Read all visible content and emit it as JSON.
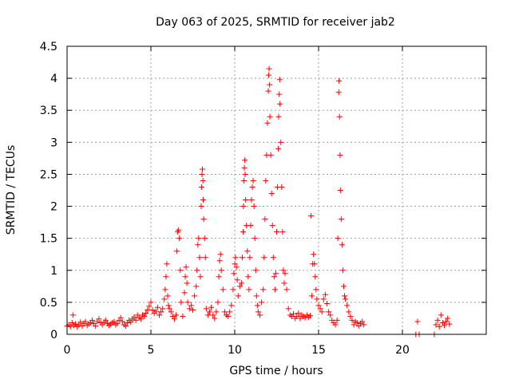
{
  "chart_data": {
    "type": "scatter",
    "title": "Day 063 of 2025, SRMTID for receiver jab2",
    "xlabel": "GPS time / hours",
    "ylabel": "SRMTID / TECUs",
    "xlim": [
      0,
      25
    ],
    "ylim": [
      0,
      4.5
    ],
    "xticks": [
      0,
      5,
      10,
      15,
      20
    ],
    "xtick_labels": [
      "0",
      "5",
      "10",
      "15",
      "20"
    ],
    "yticks": [
      0,
      0.5,
      1,
      1.5,
      2,
      2.5,
      3,
      3.5,
      4,
      4.5
    ],
    "ytick_labels": [
      "0",
      "0.5",
      "1",
      "1.5",
      "2",
      "2.5",
      "3",
      "3.5",
      "4",
      "4.5"
    ],
    "grid": true,
    "marker": "+",
    "color": "#ff0000",
    "series": [
      {
        "name": "jab2",
        "points": [
          [
            0.0,
            0.13
          ],
          [
            0.1,
            0.15
          ],
          [
            0.2,
            0.12
          ],
          [
            0.3,
            0.18
          ],
          [
            0.35,
            0.3
          ],
          [
            0.4,
            0.14
          ],
          [
            0.5,
            0.16
          ],
          [
            0.6,
            0.12
          ],
          [
            0.7,
            0.15
          ],
          [
            0.8,
            0.19
          ],
          [
            0.9,
            0.13
          ],
          [
            1.0,
            0.17
          ],
          [
            1.1,
            0.2
          ],
          [
            1.2,
            0.14
          ],
          [
            1.3,
            0.16
          ],
          [
            1.4,
            0.18
          ],
          [
            1.5,
            0.22
          ],
          [
            1.6,
            0.17
          ],
          [
            1.7,
            0.13
          ],
          [
            1.8,
            0.2
          ],
          [
            1.9,
            0.24
          ],
          [
            2.0,
            0.18
          ],
          [
            2.1,
            0.15
          ],
          [
            2.2,
            0.19
          ],
          [
            2.3,
            0.22
          ],
          [
            2.4,
            0.17
          ],
          [
            2.5,
            0.14
          ],
          [
            2.6,
            0.16
          ],
          [
            2.7,
            0.18
          ],
          [
            2.8,
            0.2
          ],
          [
            2.9,
            0.15
          ],
          [
            3.0,
            0.17
          ],
          [
            3.1,
            0.22
          ],
          [
            3.2,
            0.26
          ],
          [
            3.3,
            0.2
          ],
          [
            3.4,
            0.15
          ],
          [
            3.5,
            0.13
          ],
          [
            3.6,
            0.18
          ],
          [
            3.7,
            0.22
          ],
          [
            3.8,
            0.19
          ],
          [
            3.9,
            0.24
          ],
          [
            4.0,
            0.27
          ],
          [
            4.1,
            0.22
          ],
          [
            4.2,
            0.3
          ],
          [
            4.3,
            0.26
          ],
          [
            4.4,
            0.24
          ],
          [
            4.5,
            0.3
          ],
          [
            4.6,
            0.28
          ],
          [
            4.7,
            0.33
          ],
          [
            4.8,
            0.38
          ],
          [
            4.9,
            0.44
          ],
          [
            5.0,
            0.5
          ],
          [
            5.1,
            0.38
          ],
          [
            5.2,
            0.33
          ],
          [
            5.3,
            0.36
          ],
          [
            5.4,
            0.42
          ],
          [
            5.5,
            0.3
          ],
          [
            5.6,
            0.35
          ],
          [
            5.7,
            0.4
          ],
          [
            5.8,
            0.55
          ],
          [
            5.85,
            0.7
          ],
          [
            5.9,
            0.9
          ],
          [
            5.95,
            1.1
          ],
          [
            6.0,
            0.6
          ],
          [
            6.05,
            0.45
          ],
          [
            6.1,
            0.4
          ],
          [
            6.2,
            0.35
          ],
          [
            6.3,
            0.28
          ],
          [
            6.4,
            0.24
          ],
          [
            6.5,
            0.3
          ],
          [
            6.55,
            1.3
          ],
          [
            6.6,
            1.6
          ],
          [
            6.65,
            1.63
          ],
          [
            6.7,
            1.5
          ],
          [
            6.75,
            1.0
          ],
          [
            6.8,
            0.5
          ],
          [
            6.9,
            0.28
          ],
          [
            7.0,
            0.65
          ],
          [
            7.05,
            0.9
          ],
          [
            7.1,
            1.05
          ],
          [
            7.15,
            0.8
          ],
          [
            7.2,
            0.5
          ],
          [
            7.3,
            0.4
          ],
          [
            7.4,
            0.45
          ],
          [
            7.5,
            0.38
          ],
          [
            7.6,
            0.6
          ],
          [
            7.7,
            0.75
          ],
          [
            7.75,
            1.0
          ],
          [
            7.8,
            1.4
          ],
          [
            7.85,
            1.5
          ],
          [
            7.9,
            1.2
          ],
          [
            7.95,
            0.9
          ],
          [
            8.0,
            2.0
          ],
          [
            8.02,
            2.3
          ],
          [
            8.05,
            2.5
          ],
          [
            8.07,
            2.58
          ],
          [
            8.1,
            2.4
          ],
          [
            8.12,
            2.1
          ],
          [
            8.15,
            1.8
          ],
          [
            8.2,
            1.5
          ],
          [
            8.25,
            1.2
          ],
          [
            8.3,
            0.4
          ],
          [
            8.4,
            0.3
          ],
          [
            8.5,
            0.35
          ],
          [
            8.6,
            0.42
          ],
          [
            8.7,
            0.3
          ],
          [
            8.8,
            0.25
          ],
          [
            8.9,
            0.35
          ],
          [
            9.0,
            0.5
          ],
          [
            9.05,
            0.9
          ],
          [
            9.1,
            1.15
          ],
          [
            9.15,
            1.25
          ],
          [
            9.2,
            1.0
          ],
          [
            9.3,
            0.7
          ],
          [
            9.4,
            0.35
          ],
          [
            9.5,
            0.3
          ],
          [
            9.6,
            0.28
          ],
          [
            9.7,
            0.35
          ],
          [
            9.8,
            0.45
          ],
          [
            9.9,
            0.7
          ],
          [
            9.95,
            0.95
          ],
          [
            10.0,
            1.1
          ],
          [
            10.05,
            1.2
          ],
          [
            10.1,
            1.05
          ],
          [
            10.15,
            0.85
          ],
          [
            10.2,
            0.6
          ],
          [
            10.3,
            0.75
          ],
          [
            10.4,
            0.8
          ],
          [
            10.45,
            1.2
          ],
          [
            10.5,
            1.6
          ],
          [
            10.52,
            2.0
          ],
          [
            10.55,
            2.4
          ],
          [
            10.57,
            2.6
          ],
          [
            10.6,
            2.72
          ],
          [
            10.62,
            2.5
          ],
          [
            10.65,
            2.1
          ],
          [
            10.7,
            1.7
          ],
          [
            10.75,
            1.3
          ],
          [
            10.8,
            0.9
          ],
          [
            10.85,
            0.7
          ],
          [
            10.9,
            1.2
          ],
          [
            10.95,
            1.7
          ],
          [
            11.0,
            2.1
          ],
          [
            11.05,
            2.3
          ],
          [
            11.1,
            2.4
          ],
          [
            11.15,
            2.0
          ],
          [
            11.2,
            1.5
          ],
          [
            11.25,
            1.0
          ],
          [
            11.3,
            0.6
          ],
          [
            11.35,
            0.45
          ],
          [
            11.4,
            0.35
          ],
          [
            11.5,
            0.3
          ],
          [
            11.6,
            0.5
          ],
          [
            11.7,
            0.7
          ],
          [
            11.75,
            1.2
          ],
          [
            11.8,
            1.8
          ],
          [
            11.85,
            2.4
          ],
          [
            11.9,
            2.8
          ],
          [
            11.95,
            3.3
          ],
          [
            12.0,
            3.8
          ],
          [
            12.02,
            4.05
          ],
          [
            12.05,
            4.15
          ],
          [
            12.08,
            3.9
          ],
          [
            12.1,
            3.4
          ],
          [
            12.15,
            2.8
          ],
          [
            12.2,
            2.2
          ],
          [
            12.25,
            1.7
          ],
          [
            12.3,
            1.2
          ],
          [
            12.35,
            0.9
          ],
          [
            12.4,
            0.7
          ],
          [
            12.45,
            0.95
          ],
          [
            12.5,
            1.6
          ],
          [
            12.55,
            2.3
          ],
          [
            12.6,
            2.9
          ],
          [
            12.62,
            3.4
          ],
          [
            12.65,
            3.75
          ],
          [
            12.68,
            3.98
          ],
          [
            12.7,
            3.6
          ],
          [
            12.75,
            3.0
          ],
          [
            12.8,
            2.3
          ],
          [
            12.85,
            1.6
          ],
          [
            12.9,
            1.0
          ],
          [
            12.95,
            0.8
          ],
          [
            13.0,
            0.95
          ],
          [
            13.1,
            0.7
          ],
          [
            13.2,
            0.4
          ],
          [
            13.3,
            0.3
          ],
          [
            13.4,
            0.28
          ],
          [
            13.5,
            0.32
          ],
          [
            13.6,
            0.25
          ],
          [
            13.7,
            0.28
          ],
          [
            13.8,
            0.33
          ],
          [
            13.9,
            0.25
          ],
          [
            14.0,
            0.3
          ],
          [
            14.1,
            0.28
          ],
          [
            14.2,
            0.26
          ],
          [
            14.3,
            0.3
          ],
          [
            14.4,
            0.27
          ],
          [
            14.5,
            0.29
          ],
          [
            14.55,
            1.85
          ],
          [
            14.6,
            0.6
          ],
          [
            14.65,
            1.1
          ],
          [
            14.7,
            1.25
          ],
          [
            14.75,
            1.1
          ],
          [
            14.8,
            0.9
          ],
          [
            14.85,
            0.7
          ],
          [
            14.9,
            0.55
          ],
          [
            15.0,
            0.45
          ],
          [
            15.1,
            0.4
          ],
          [
            15.2,
            0.35
          ],
          [
            15.3,
            0.55
          ],
          [
            15.4,
            0.62
          ],
          [
            15.5,
            0.48
          ],
          [
            15.6,
            0.35
          ],
          [
            15.7,
            0.3
          ],
          [
            15.8,
            0.22
          ],
          [
            15.9,
            0.18
          ],
          [
            16.0,
            0.15
          ],
          [
            16.1,
            0.22
          ],
          [
            16.15,
            1.5
          ],
          [
            16.2,
            3.78
          ],
          [
            16.22,
            3.96
          ],
          [
            16.25,
            3.4
          ],
          [
            16.28,
            2.8
          ],
          [
            16.3,
            2.25
          ],
          [
            16.35,
            1.8
          ],
          [
            16.4,
            1.4
          ],
          [
            16.45,
            1.0
          ],
          [
            16.5,
            0.75
          ],
          [
            16.55,
            0.6
          ],
          [
            16.6,
            0.55
          ],
          [
            16.7,
            0.45
          ],
          [
            16.8,
            0.35
          ],
          [
            16.9,
            0.28
          ],
          [
            17.0,
            0.22
          ],
          [
            17.1,
            0.15
          ],
          [
            17.2,
            0.2
          ],
          [
            17.3,
            0.18
          ],
          [
            17.4,
            0.13
          ],
          [
            17.5,
            0.17
          ],
          [
            17.6,
            0.2
          ],
          [
            17.7,
            0.15
          ],
          [
            20.8,
            0.0
          ],
          [
            20.9,
            0.2
          ],
          [
            21.0,
            0.0
          ],
          [
            21.9,
            0.0
          ],
          [
            22.0,
            0.15
          ],
          [
            22.1,
            0.22
          ],
          [
            22.2,
            0.12
          ],
          [
            22.3,
            0.3
          ],
          [
            22.4,
            0.18
          ],
          [
            22.5,
            0.14
          ],
          [
            22.6,
            0.2
          ],
          [
            22.7,
            0.25
          ],
          [
            22.8,
            0.16
          ]
        ]
      }
    ]
  }
}
